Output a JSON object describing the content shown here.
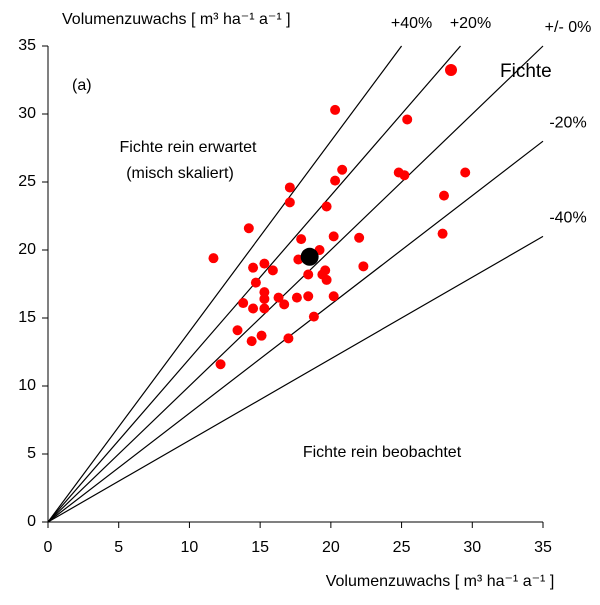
{
  "chart_data": {
    "type": "scatter",
    "y_label": "Volumenzuwachs  [ m³ ha⁻¹ a⁻¹ ]",
    "x_label": "Volumenzuwachs  [ m³ ha⁻¹ a⁻¹ ]",
    "xlim": [
      0,
      35
    ],
    "ylim": [
      0,
      35
    ],
    "xticks": [
      0,
      5,
      10,
      15,
      20,
      25,
      30,
      35
    ],
    "yticks": [
      0,
      5,
      10,
      15,
      20,
      25,
      30,
      35
    ],
    "panel_label": "(a)",
    "annotations": [
      "Fichte rein erwartet",
      "(misch skaliert)",
      "Fichte rein beobachtet"
    ],
    "reference_lines": [
      {
        "label": "+40%",
        "slope": 1.4
      },
      {
        "label": "+20%",
        "slope": 1.2
      },
      {
        "label": "+/- 0%",
        "slope": 1.0
      },
      {
        "label": "-20%",
        "slope": 0.8
      },
      {
        "label": "-40%",
        "slope": 0.6
      }
    ],
    "series": [
      {
        "name": "Fichte",
        "color": "#ff0000",
        "x": [
          11.7,
          14.2,
          12.2,
          13.4,
          13.8,
          14.4,
          14.5,
          14.7,
          15.3,
          15.3,
          15.3,
          15.3,
          14.5,
          15.1,
          15.9,
          16.3,
          16.7,
          17.0,
          17.1,
          17.1,
          17.6,
          17.9,
          17.7,
          18.4,
          18.4,
          18.8,
          19.2,
          19.4,
          19.6,
          19.7,
          19.7,
          20.2,
          20.2,
          20.3,
          20.3,
          20.8,
          22.0,
          22.3,
          24.8,
          25.2,
          25.4,
          28.0,
          27.9,
          29.5
        ],
        "y": [
          19.4,
          21.6,
          11.6,
          14.1,
          16.1,
          13.3,
          18.7,
          17.6,
          19.0,
          16.9,
          16.4,
          15.7,
          15.7,
          13.7,
          18.5,
          16.5,
          16.0,
          13.5,
          24.6,
          23.5,
          16.5,
          20.8,
          19.3,
          16.6,
          18.2,
          15.1,
          20.0,
          18.2,
          18.5,
          17.8,
          23.2,
          21.0,
          16.6,
          25.1,
          30.3,
          25.9,
          20.9,
          18.8,
          25.7,
          25.5,
          29.6,
          24.0,
          21.2,
          25.7
        ]
      }
    ],
    "mean_point": {
      "x": 18.5,
      "y": 19.5,
      "color": "#000000"
    }
  }
}
